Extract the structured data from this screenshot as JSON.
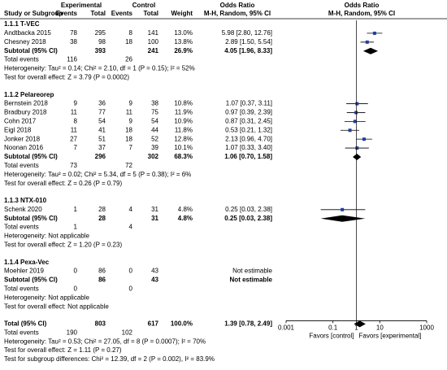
{
  "chart_data": {
    "type": "forest",
    "headers": {
      "experimental": "Experimental",
      "control": "Control",
      "or_left": "Odds Ratio",
      "or_right": "Odds Ratio",
      "study": "Study or Subgroup",
      "e_events": "Events",
      "e_total": "Total",
      "c_events": "Events",
      "c_total": "Total",
      "weight": "Weight",
      "method_left": "M-H, Random, 95% CI",
      "method_right": "M-H, Random, 95% CI"
    },
    "xscale": "log",
    "xlim": [
      0.001,
      1000
    ],
    "xticks": [
      0.001,
      0.1,
      1,
      10,
      1000
    ],
    "favors_left": "Favors [control]",
    "favors_right": "Favors [experimental]",
    "groups": [
      {
        "title": "1.1.1 T-VEC",
        "studies": [
          {
            "name": "Andtbacka 2015",
            "e_events": 78,
            "e_total": 295,
            "c_events": 8,
            "c_total": 141,
            "weight": "13.0%",
            "ci_text": "5.98 [2.80, 12.76]",
            "or": 5.98,
            "ci": [
              2.8,
              12.76
            ]
          },
          {
            "name": "Chesney 2018",
            "e_events": 38,
            "e_total": 98,
            "c_events": 18,
            "c_total": 100,
            "weight": "13.8%",
            "ci_text": "2.89 [1.50, 5.54]",
            "or": 2.89,
            "ci": [
              1.5,
              5.54
            ]
          }
        ],
        "subtotal": {
          "name": "Subtotal (95% CI)",
          "e_total": 393,
          "c_total": 241,
          "weight": "26.9%",
          "ci_text": "4.05 [1.96, 8.33]",
          "or": 4.05,
          "ci": [
            1.96,
            8.33
          ]
        },
        "total_events": {
          "name": "Total events",
          "e": 116,
          "c": 26
        },
        "heterogeneity": "Heterogeneity: Tau² = 0.14; Chi² = 2.10, df = 1 (P = 0.15); I² = 52%",
        "overall": "Test for overall effect: Z = 3.79 (P = 0.0002)"
      },
      {
        "title": "1.1.2 Pelareorep",
        "studies": [
          {
            "name": "Bernstein 2018",
            "e_events": 9,
            "e_total": 36,
            "c_events": 9,
            "c_total": 38,
            "weight": "10.8%",
            "ci_text": "1.07 [0.37, 3.11]",
            "or": 1.07,
            "ci": [
              0.37,
              3.11
            ]
          },
          {
            "name": "Bradbury 2018",
            "e_events": 11,
            "e_total": 77,
            "c_events": 11,
            "c_total": 75,
            "weight": "11.9%",
            "ci_text": "0.97 [0.39, 2.39]",
            "or": 0.97,
            "ci": [
              0.39,
              2.39
            ]
          },
          {
            "name": "Cohn 2017",
            "e_events": 8,
            "e_total": 54,
            "c_events": 9,
            "c_total": 54,
            "weight": "10.9%",
            "ci_text": "0.87 [0.31, 2.45]",
            "or": 0.87,
            "ci": [
              0.31,
              2.45
            ]
          },
          {
            "name": "Eigl 2018",
            "e_events": 11,
            "e_total": 41,
            "c_events": 18,
            "c_total": 44,
            "weight": "11.8%",
            "ci_text": "0.53 [0.21, 1.32]",
            "or": 0.53,
            "ci": [
              0.21,
              1.32
            ]
          },
          {
            "name": "Jonker 2018",
            "e_events": 27,
            "e_total": 51,
            "c_events": 18,
            "c_total": 52,
            "weight": "12.8%",
            "ci_text": "2.13 [0.96, 4.70]",
            "or": 2.13,
            "ci": [
              0.96,
              4.7
            ]
          },
          {
            "name": "Noonan 2016",
            "e_events": 7,
            "e_total": 37,
            "c_events": 7,
            "c_total": 39,
            "weight": "10.1%",
            "ci_text": "1.07 [0.33, 3.40]",
            "or": 1.07,
            "ci": [
              0.33,
              3.4
            ]
          }
        ],
        "subtotal": {
          "name": "Subtotal (95% CI)",
          "e_total": 296,
          "c_total": 302,
          "weight": "68.3%",
          "ci_text": "1.06 [0.70, 1.58]",
          "or": 1.06,
          "ci": [
            0.7,
            1.58
          ]
        },
        "total_events": {
          "name": "Total events",
          "e": 73,
          "c": 72
        },
        "heterogeneity": "Heterogeneity: Tau² = 0.02; Chi² = 5.34, df = 5 (P = 0.38); I² = 6%",
        "overall": "Test for overall effect: Z = 0.26 (P = 0.79)"
      },
      {
        "title": "1.1.3 NTX-010",
        "studies": [
          {
            "name": "Schenk 2020",
            "e_events": 1,
            "e_total": 28,
            "c_events": 4,
            "c_total": 31,
            "weight": "4.8%",
            "ci_text": "0.25 [0.03, 2.38]",
            "or": 0.25,
            "ci": [
              0.03,
              2.38
            ]
          }
        ],
        "subtotal": {
          "name": "Subtotal (95% CI)",
          "e_total": 28,
          "c_total": 31,
          "weight": "4.8%",
          "ci_text": "0.25 [0.03, 2.38]",
          "or": 0.25,
          "ci": [
            0.03,
            2.38
          ]
        },
        "total_events": {
          "name": "Total events",
          "e": 1,
          "c": 4
        },
        "heterogeneity": "Heterogeneity: Not applicable",
        "overall": "Test for overall effect: Z = 1.20 (P = 0.23)"
      },
      {
        "title": "1.1.4 Pexa-Vec",
        "studies": [
          {
            "name": "Moehler 2019",
            "e_events": 0,
            "e_total": 86,
            "c_events": 0,
            "c_total": 43,
            "ci_text": "Not estimable"
          }
        ],
        "subtotal": {
          "name": "Subtotal (95% CI)",
          "e_total": 86,
          "c_total": 43,
          "ci_text": "Not estimable"
        },
        "total_events": {
          "name": "Total events",
          "e": 0,
          "c": 0
        },
        "heterogeneity": "Heterogeneity: Not applicable",
        "overall": "Test for overall effect: Not applicable"
      }
    ],
    "total": {
      "name": "Total (95% CI)",
      "e_total": 803,
      "c_total": 617,
      "weight": "100.0%",
      "ci_text": "1.39 [0.78, 2.49]",
      "or": 1.39,
      "ci": [
        0.78,
        2.49
      ]
    },
    "total_events": {
      "name": "Total events",
      "e": 190,
      "c": 102
    },
    "heterogeneity": "Heterogeneity: Tau² = 0.53; Chi² = 27.05, df = 8 (P = 0.0007); I² = 70%",
    "overall": "Test for overall effect: Z = 1.11 (P = 0.27)",
    "subgroup_test": "Test for subgroup differences: Chi² = 12.39, df = 2 (P = 0.002), I² = 83.9%",
    "square_color": "#1f3fa0"
  }
}
